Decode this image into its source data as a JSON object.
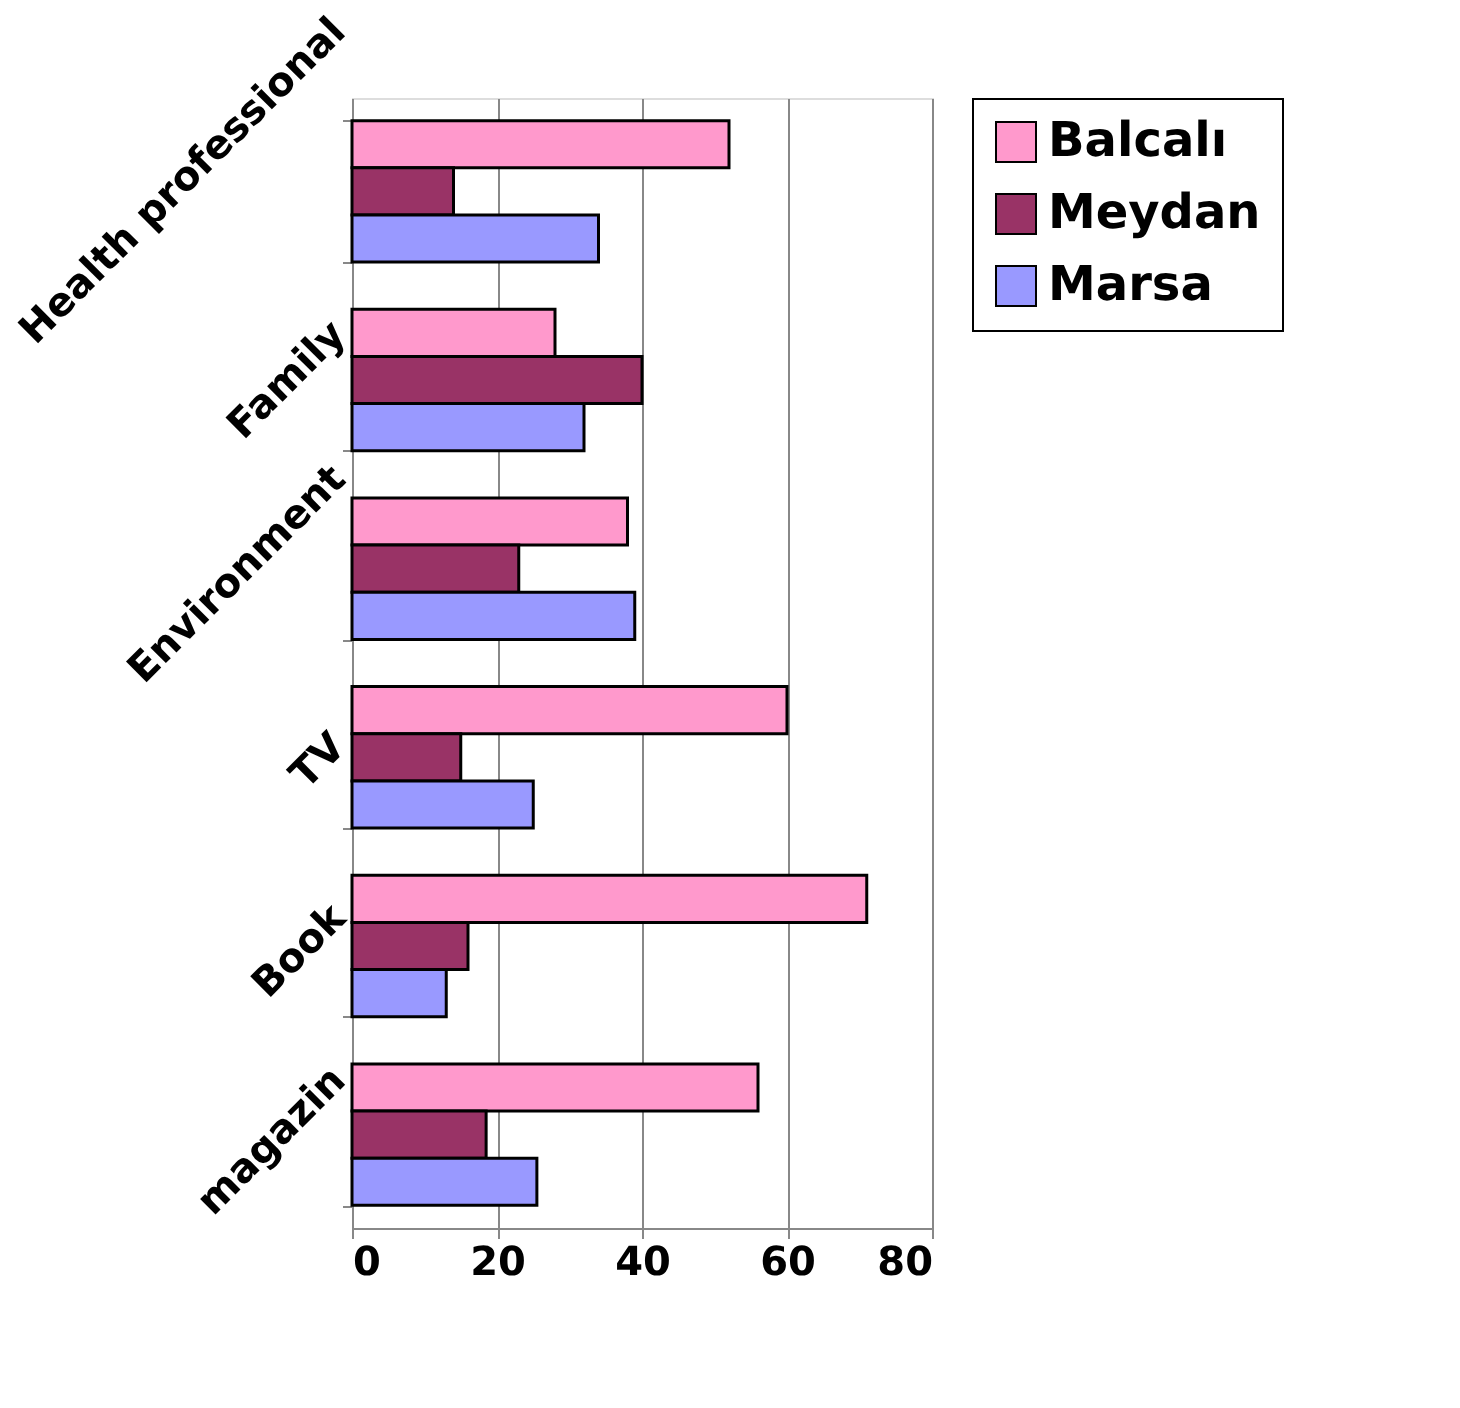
{
  "chart_data": {
    "type": "bar",
    "orientation": "horizontal",
    "categories": [
      "Health professional",
      "Family",
      "Environment",
      "TV",
      "Book",
      "magazin"
    ],
    "series": [
      {
        "name": "Balcalı",
        "color": "#ff99cc",
        "values": [
          52,
          28,
          38,
          60,
          71,
          56
        ]
      },
      {
        "name": "Meydan",
        "color": "#993366",
        "values": [
          14,
          40,
          23,
          15,
          16,
          18.5
        ]
      },
      {
        "name": "Marsa",
        "color": "#9999ff",
        "values": [
          34,
          32,
          39,
          25,
          13,
          25.5
        ]
      }
    ],
    "xlim": [
      0,
      80
    ],
    "xticks": [
      0,
      20,
      40,
      60,
      80
    ],
    "grid": "x",
    "legend": "right"
  }
}
